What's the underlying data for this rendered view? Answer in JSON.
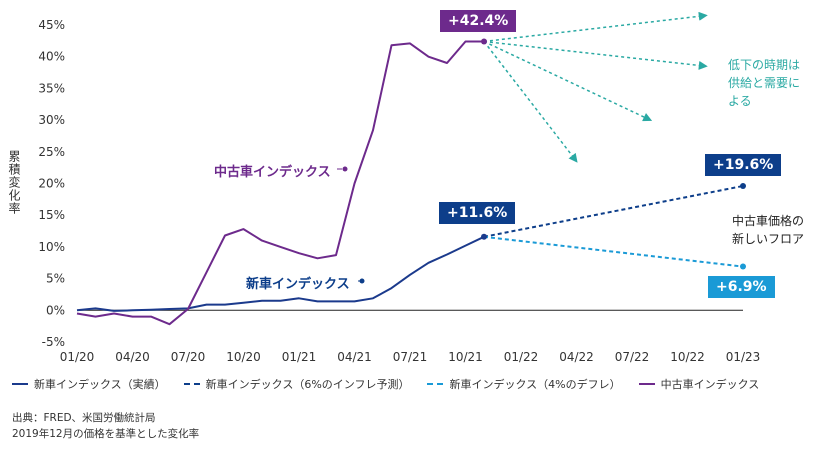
{
  "chart_data": {
    "type": "line",
    "ylabel": "累積変化率",
    "ylim": [
      -5,
      45
    ],
    "yticks": [
      "45%",
      "40%",
      "35%",
      "30%",
      "25%",
      "20%",
      "15%",
      "10%",
      "5%",
      "0%",
      "-5%"
    ],
    "ytick_values": [
      45,
      40,
      35,
      30,
      25,
      20,
      15,
      10,
      5,
      0,
      -5
    ],
    "xticks": [
      "01/20",
      "04/20",
      "07/20",
      "10/20",
      "01/21",
      "04/21",
      "07/21",
      "10/21",
      "01/22",
      "04/22",
      "07/22",
      "10/22",
      "01/23"
    ],
    "xtick_months": [
      0,
      3,
      6,
      9,
      12,
      15,
      18,
      21,
      24,
      27,
      30,
      33,
      36
    ],
    "xlim_months": [
      0,
      36
    ],
    "series": [
      {
        "name": "新車インデックス（実績）",
        "color": "#1b3a8c",
        "style": "solid",
        "x": [
          0,
          1,
          2,
          3,
          4,
          5,
          6,
          7,
          8,
          9,
          10,
          11,
          12,
          13,
          14,
          15,
          16,
          17,
          18,
          19,
          20,
          21,
          22
        ],
        "values": [
          0.0,
          0.3,
          -0.1,
          0.0,
          0.1,
          0.2,
          0.3,
          0.9,
          0.9,
          1.2,
          1.5,
          1.5,
          1.9,
          1.4,
          1.4,
          1.4,
          1.9,
          3.5,
          5.6,
          7.5,
          8.8,
          10.2,
          11.6
        ]
      },
      {
        "name": "新車インデックス（6%のインフレ予測）",
        "color": "#0d3e8a",
        "style": "dashed",
        "x": [
          22,
          36
        ],
        "values": [
          11.6,
          19.6
        ]
      },
      {
        "name": "新車インデックス（4%のデフレ）",
        "color": "#1a9ad6",
        "style": "dashed",
        "x": [
          22,
          36
        ],
        "values": [
          11.6,
          6.9
        ]
      },
      {
        "name": "中古車インデックス",
        "color": "#6d2a8c",
        "style": "solid",
        "x": [
          0,
          1,
          2,
          3,
          4,
          5,
          6,
          7,
          8,
          9,
          10,
          11,
          12,
          13,
          14,
          15,
          16,
          17,
          18,
          19,
          20,
          21,
          22
        ],
        "values": [
          -0.5,
          -1.0,
          -0.5,
          -1.0,
          -1.0,
          -2.2,
          0.2,
          6.0,
          11.8,
          12.8,
          11.0,
          10.0,
          9.0,
          8.2,
          8.7,
          20.0,
          28.4,
          41.8,
          42.1,
          40.0,
          39.0,
          42.4,
          42.4
        ]
      }
    ],
    "fan_arrows": {
      "color": "#2aa9a3",
      "x_start": 22,
      "y_start": 42.4,
      "targets": [
        [
          34,
          46.5
        ],
        [
          34,
          38.5
        ],
        [
          31,
          30.0
        ],
        [
          27,
          23.5
        ]
      ]
    },
    "annotations": {
      "used_peak_badge": "+42.4%",
      "new_forecast_badge": "+19.6%",
      "new_actual_badge": "+11.6%",
      "new_deflation_badge": "+6.9%",
      "used_series_label": "中古車インデックス",
      "new_series_label": "新車インデックス",
      "decline_note": [
        "低下の時期は",
        "供給と需要に",
        "よる"
      ],
      "floor_note": [
        "中古車価格の",
        "新しいフロア"
      ]
    }
  },
  "legend": [
    {
      "label": "新車インデックス（実績）",
      "color": "#1b3a8c",
      "style": "solid"
    },
    {
      "label": "新車インデックス（6%のインフレ予測）",
      "color": "#0d3e8a",
      "style": "dashed"
    },
    {
      "label": "新車インデックス（4%のデフレ）",
      "color": "#1a9ad6",
      "style": "dashed"
    },
    {
      "label": "中古車インデックス",
      "color": "#6d2a8c",
      "style": "solid"
    }
  ],
  "footer": {
    "source": "出典：FRED、米国労働統計局",
    "basis": "2019年12月の価格を基準とした変化率"
  }
}
